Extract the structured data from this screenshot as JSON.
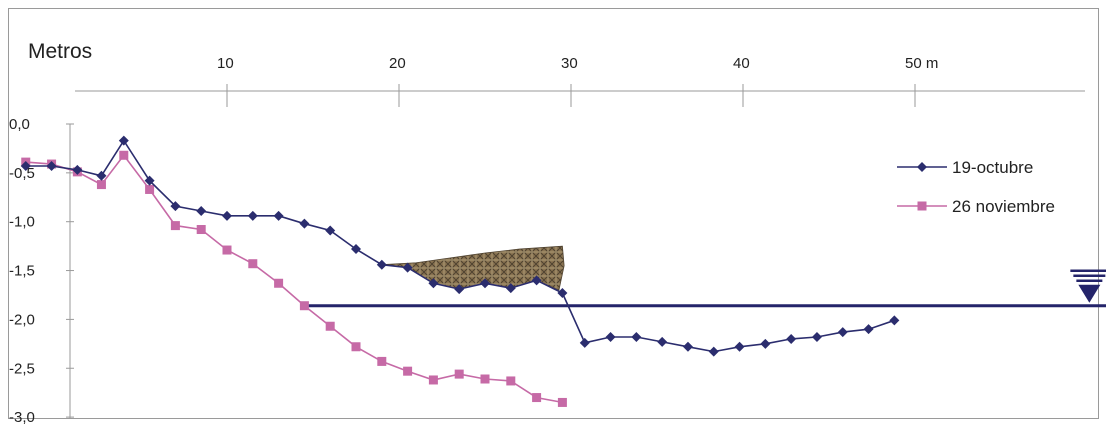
{
  "chart_data": {
    "type": "line",
    "title": "Metros",
    "x_ticks": [
      "10",
      "20",
      "30",
      "40",
      "50 m"
    ],
    "x_tick_values": [
      10,
      20,
      30,
      40,
      50
    ],
    "xlim": [
      -3,
      62
    ],
    "y_ticks": [
      "0,0",
      "-0,5",
      "-1,0",
      "-1,5",
      "-2,0",
      "-2,5",
      "-3,0"
    ],
    "y_tick_values": [
      0,
      -0.5,
      -1,
      -1.5,
      -2,
      -2.5,
      -3
    ],
    "ylim": [
      -3,
      0
    ],
    "legend_position": "right",
    "series": [
      {
        "name": "19-octubre",
        "color": "#2b2d6e",
        "marker": "diamond",
        "points": [
          [
            -1.7,
            -0.43
          ],
          [
            -0.2,
            -0.43
          ],
          [
            1.3,
            -0.47
          ],
          [
            2.7,
            -0.53
          ],
          [
            4.0,
            -0.17
          ],
          [
            5.5,
            -0.58
          ],
          [
            7.0,
            -0.84
          ],
          [
            8.5,
            -0.89
          ],
          [
            10.0,
            -0.94
          ],
          [
            11.5,
            -0.94
          ],
          [
            13.0,
            -0.94
          ],
          [
            14.5,
            -1.02
          ],
          [
            16.0,
            -1.09
          ],
          [
            17.5,
            -1.28
          ],
          [
            19.0,
            -1.44
          ],
          [
            20.5,
            -1.47
          ],
          [
            22.0,
            -1.63
          ],
          [
            23.5,
            -1.69
          ],
          [
            25.0,
            -1.63
          ],
          [
            26.5,
            -1.68
          ],
          [
            28.0,
            -1.6
          ],
          [
            29.5,
            -1.73
          ],
          [
            30.8,
            -2.24
          ],
          [
            32.3,
            -2.18
          ],
          [
            33.8,
            -2.18
          ],
          [
            35.3,
            -2.23
          ],
          [
            36.8,
            -2.28
          ],
          [
            38.3,
            -2.33
          ],
          [
            39.8,
            -2.28
          ],
          [
            41.3,
            -2.25
          ],
          [
            42.8,
            -2.2
          ],
          [
            44.3,
            -2.18
          ],
          [
            45.8,
            -2.13
          ],
          [
            47.3,
            -2.1
          ],
          [
            48.8,
            -2.01
          ]
        ]
      },
      {
        "name": "26 noviembre",
        "color": "#c66aa6",
        "marker": "square",
        "points": [
          [
            -1.7,
            -0.39
          ],
          [
            -0.2,
            -0.41
          ],
          [
            1.3,
            -0.49
          ],
          [
            2.7,
            -0.62
          ],
          [
            4.0,
            -0.32
          ],
          [
            5.5,
            -0.67
          ],
          [
            7.0,
            -1.04
          ],
          [
            8.5,
            -1.08
          ],
          [
            10.0,
            -1.29
          ],
          [
            11.5,
            -1.43
          ],
          [
            13.0,
            -1.63
          ],
          [
            14.5,
            -1.86
          ],
          [
            16.0,
            -2.07
          ],
          [
            17.5,
            -2.28
          ],
          [
            19.0,
            -2.43
          ],
          [
            20.5,
            -2.53
          ],
          [
            22.0,
            -2.62
          ],
          [
            23.5,
            -2.56
          ],
          [
            25.0,
            -2.61
          ],
          [
            26.5,
            -2.63
          ],
          [
            28.0,
            -2.8
          ],
          [
            29.5,
            -2.85
          ]
        ]
      }
    ],
    "water_level": {
      "value": -1.86,
      "x_range": [
        14.5,
        61.3
      ],
      "color": "#24246a"
    },
    "deposit": {
      "color": "#8a7452",
      "top": [
        [
          19.0,
          -1.44
        ],
        [
          21.0,
          -1.42
        ],
        [
          23.0,
          -1.37
        ],
        [
          25.0,
          -1.32
        ],
        [
          27.0,
          -1.28
        ],
        [
          29.5,
          -1.25
        ],
        [
          29.6,
          -1.45
        ],
        [
          29.3,
          -1.7
        ]
      ]
    }
  }
}
